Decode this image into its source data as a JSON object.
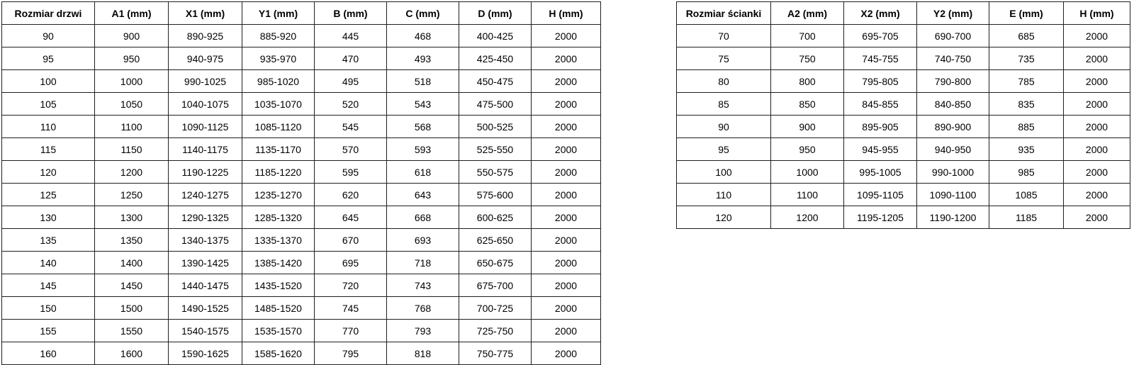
{
  "tables": {
    "doors": {
      "title": "door size table",
      "headers": [
        "Rozmiar drzwi",
        "A1 (mm)",
        "X1 (mm)",
        "Y1 (mm)",
        "B (mm)",
        "C (mm)",
        "D (mm)",
        "H (mm)"
      ],
      "rows": [
        [
          "90",
          "900",
          "890-925",
          "885-920",
          "445",
          "468",
          "400-425",
          "2000"
        ],
        [
          "95",
          "950",
          "940-975",
          "935-970",
          "470",
          "493",
          "425-450",
          "2000"
        ],
        [
          "100",
          "1000",
          "990-1025",
          "985-1020",
          "495",
          "518",
          "450-475",
          "2000"
        ],
        [
          "105",
          "1050",
          "1040-1075",
          "1035-1070",
          "520",
          "543",
          "475-500",
          "2000"
        ],
        [
          "110",
          "1100",
          "1090-1125",
          "1085-1120",
          "545",
          "568",
          "500-525",
          "2000"
        ],
        [
          "115",
          "1150",
          "1140-1175",
          "1135-1170",
          "570",
          "593",
          "525-550",
          "2000"
        ],
        [
          "120",
          "1200",
          "1190-1225",
          "1185-1220",
          "595",
          "618",
          "550-575",
          "2000"
        ],
        [
          "125",
          "1250",
          "1240-1275",
          "1235-1270",
          "620",
          "643",
          "575-600",
          "2000"
        ],
        [
          "130",
          "1300",
          "1290-1325",
          "1285-1320",
          "645",
          "668",
          "600-625",
          "2000"
        ],
        [
          "135",
          "1350",
          "1340-1375",
          "1335-1370",
          "670",
          "693",
          "625-650",
          "2000"
        ],
        [
          "140",
          "1400",
          "1390-1425",
          "1385-1420",
          "695",
          "718",
          "650-675",
          "2000"
        ],
        [
          "145",
          "1450",
          "1440-1475",
          "1435-1520",
          "720",
          "743",
          "675-700",
          "2000"
        ],
        [
          "150",
          "1500",
          "1490-1525",
          "1485-1520",
          "745",
          "768",
          "700-725",
          "2000"
        ],
        [
          "155",
          "1550",
          "1540-1575",
          "1535-1570",
          "770",
          "793",
          "725-750",
          "2000"
        ],
        [
          "160",
          "1600",
          "1590-1625",
          "1585-1620",
          "795",
          "818",
          "750-775",
          "2000"
        ]
      ]
    },
    "walls": {
      "title": "wall panel size table",
      "headers": [
        "Rozmiar ścianki",
        "A2 (mm)",
        "X2 (mm)",
        "Y2 (mm)",
        "E (mm)",
        "H (mm)"
      ],
      "rows": [
        [
          "70",
          "700",
          "695-705",
          "690-700",
          "685",
          "2000"
        ],
        [
          "75",
          "750",
          "745-755",
          "740-750",
          "735",
          "2000"
        ],
        [
          "80",
          "800",
          "795-805",
          "790-800",
          "785",
          "2000"
        ],
        [
          "85",
          "850",
          "845-855",
          "840-850",
          "835",
          "2000"
        ],
        [
          "90",
          "900",
          "895-905",
          "890-900",
          "885",
          "2000"
        ],
        [
          "95",
          "950",
          "945-955",
          "940-950",
          "935",
          "2000"
        ],
        [
          "100",
          "1000",
          "995-1005",
          "990-1000",
          "985",
          "2000"
        ],
        [
          "110",
          "1100",
          "1095-1105",
          "1090-1100",
          "1085",
          "2000"
        ],
        [
          "120",
          "1200",
          "1195-1205",
          "1190-1200",
          "1185",
          "2000"
        ]
      ]
    },
    "colors": {
      "border": "#1f1f1f",
      "text": "#000000",
      "background": "#ffffff"
    }
  }
}
